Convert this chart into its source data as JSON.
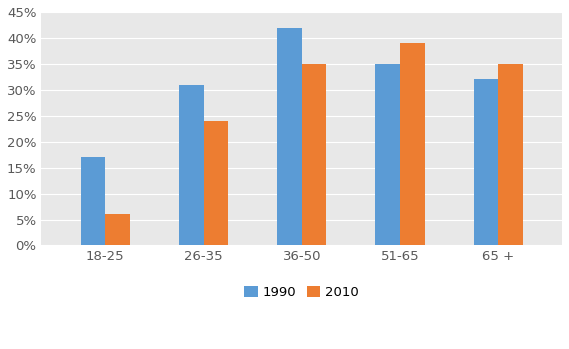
{
  "categories": [
    "18-25",
    "26-35",
    "36-50",
    "51-65",
    "65 +"
  ],
  "values_1990": [
    0.17,
    0.31,
    0.42,
    0.35,
    0.32
  ],
  "values_2010": [
    0.06,
    0.24,
    0.35,
    0.39,
    0.35
  ],
  "color_1990": "#5B9BD5",
  "color_2010": "#ED7D31",
  "ylim": [
    0,
    0.45
  ],
  "yticks": [
    0.0,
    0.05,
    0.1,
    0.15,
    0.2,
    0.25,
    0.3,
    0.35,
    0.4,
    0.45
  ],
  "legend_labels": [
    "1990",
    "2010"
  ],
  "figure_bg": "#FFFFFF",
  "plot_bg": "#E8E8E8",
  "grid_color": "#FFFFFF",
  "bar_width": 0.25,
  "tick_label_color": "#595959",
  "tick_fontsize": 9.5
}
